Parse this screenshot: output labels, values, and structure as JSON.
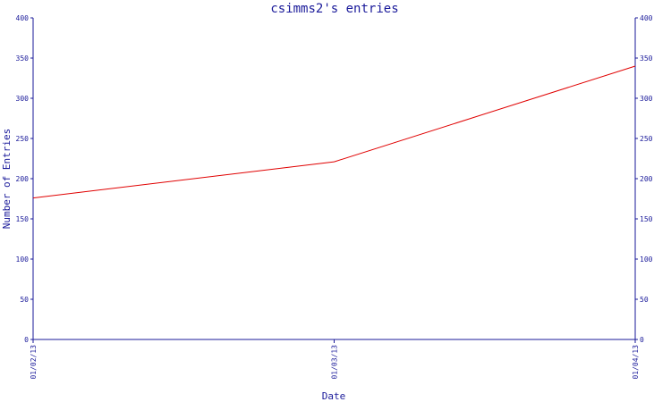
{
  "chart_data": {
    "type": "line",
    "title": "csimms2's entries",
    "xlabel": "Date",
    "ylabel": "Number of Entries",
    "x_tick_labels": [
      "01/02/13",
      "01/03/13",
      "01/04/13"
    ],
    "y_ticks": [
      0,
      50,
      100,
      150,
      200,
      250,
      300,
      350,
      400
    ],
    "ylim": [
      0,
      400
    ],
    "xlim": [
      "01/02/13",
      "01/04/13"
    ],
    "grid": false,
    "right_axis_mirrors_left": true,
    "series": [
      {
        "color": "#e00000",
        "x": [
          "01/02/13",
          "01/03/13",
          "01/04/13"
        ],
        "y": [
          176,
          221,
          340
        ]
      }
    ]
  },
  "colors": {
    "axis": "#1a1a9a",
    "line": "#e00000"
  }
}
